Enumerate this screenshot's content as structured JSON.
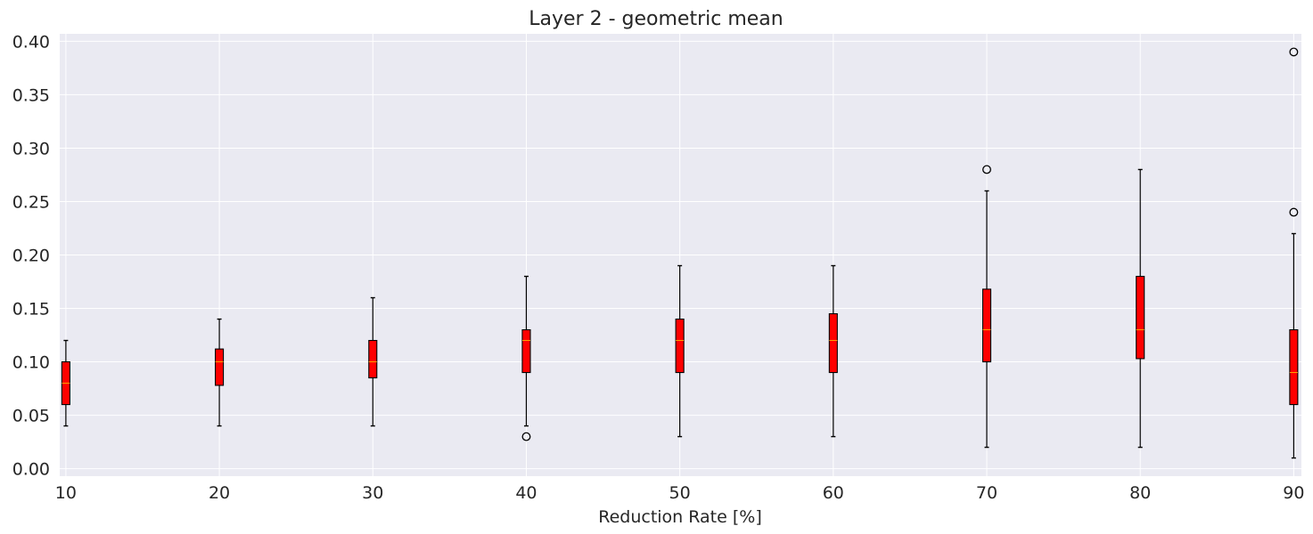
{
  "chart_data": {
    "type": "box",
    "title": "Layer 2 - geometric mean",
    "xlabel": "Reduction Rate [%]",
    "ylabel": "",
    "categories": [
      "10",
      "20",
      "30",
      "40",
      "50",
      "60",
      "70",
      "80",
      "90"
    ],
    "x_values": [
      10,
      20,
      30,
      40,
      50,
      60,
      70,
      80,
      90
    ],
    "xlim": [
      9.6,
      90.5
    ],
    "ylim": [
      -0.007,
      0.407
    ],
    "yticks": [
      0.0,
      0.05,
      0.1,
      0.15,
      0.2,
      0.25,
      0.3,
      0.35,
      0.4
    ],
    "ytick_labels": [
      "0.00",
      "0.05",
      "0.10",
      "0.15",
      "0.20",
      "0.25",
      "0.30",
      "0.35",
      "0.40"
    ],
    "grid": true,
    "boxes": [
      {
        "x": 10,
        "whisker_low": 0.04,
        "q1": 0.06,
        "median": 0.08,
        "q3": 0.1,
        "whisker_high": 0.12,
        "outliers": []
      },
      {
        "x": 20,
        "whisker_low": 0.04,
        "q1": 0.078,
        "median": 0.1,
        "q3": 0.112,
        "whisker_high": 0.14,
        "outliers": []
      },
      {
        "x": 30,
        "whisker_low": 0.04,
        "q1": 0.085,
        "median": 0.1,
        "q3": 0.12,
        "whisker_high": 0.16,
        "outliers": []
      },
      {
        "x": 40,
        "whisker_low": 0.04,
        "q1": 0.09,
        "median": 0.12,
        "q3": 0.13,
        "whisker_high": 0.18,
        "outliers": [
          0.03
        ]
      },
      {
        "x": 50,
        "whisker_low": 0.03,
        "q1": 0.09,
        "median": 0.12,
        "q3": 0.14,
        "whisker_high": 0.19,
        "outliers": []
      },
      {
        "x": 60,
        "whisker_low": 0.03,
        "q1": 0.09,
        "median": 0.12,
        "q3": 0.145,
        "whisker_high": 0.19,
        "outliers": []
      },
      {
        "x": 70,
        "whisker_low": 0.02,
        "q1": 0.1,
        "median": 0.13,
        "q3": 0.168,
        "whisker_high": 0.26,
        "outliers": [
          0.28
        ]
      },
      {
        "x": 80,
        "whisker_low": 0.02,
        "q1": 0.103,
        "median": 0.13,
        "q3": 0.18,
        "whisker_high": 0.28,
        "outliers": []
      },
      {
        "x": 90,
        "whisker_low": 0.01,
        "q1": 0.06,
        "median": 0.09,
        "q3": 0.13,
        "whisker_high": 0.22,
        "outliers": [
          0.24,
          0.39
        ]
      }
    ],
    "colors": {
      "plot_background": "#eaeaf2",
      "grid": "#ffffff",
      "box_fill": "#ff0000",
      "box_edge": "#000000",
      "median": "#ffa500",
      "whisker": "#000000",
      "outlier_edge": "#000000"
    }
  }
}
